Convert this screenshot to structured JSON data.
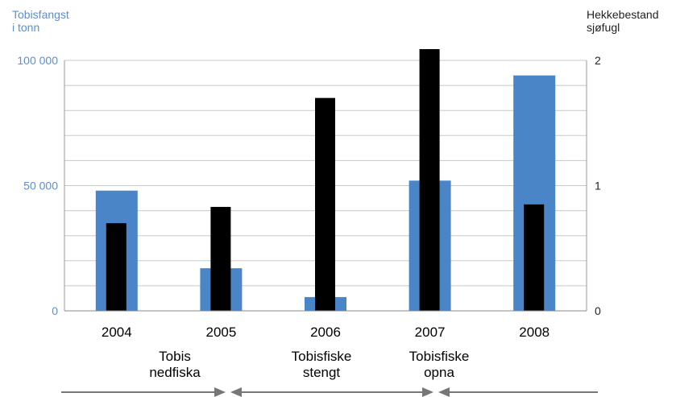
{
  "chart_data": {
    "type": "bar",
    "categories": [
      "2004",
      "2005",
      "2006",
      "2007",
      "2008"
    ],
    "y_left": {
      "title_lines": [
        "Tobisfangst",
        "i tonn"
      ],
      "range": [
        0,
        100000
      ],
      "ticks": [
        {
          "value": 0,
          "label": "0"
        },
        {
          "value": 50000,
          "label": "50 000"
        },
        {
          "value": 100000,
          "label": "100 000"
        }
      ],
      "color": "#5b8fd0"
    },
    "y_right": {
      "title_lines": [
        "Hekkebestand",
        "sjøfugl"
      ],
      "range": [
        0,
        2
      ],
      "ticks": [
        {
          "value": 0,
          "label": "0"
        },
        {
          "value": 1,
          "label": "1"
        },
        {
          "value": 2,
          "label": "2"
        }
      ],
      "color": "#222222"
    },
    "series": [
      {
        "axis": "left",
        "color": "#4a85c8",
        "values": [
          48000,
          17000,
          5500,
          52000,
          94000
        ]
      },
      {
        "axis": "right",
        "color": "#000000",
        "values": [
          0.7,
          0.83,
          1.7,
          2.09,
          0.85
        ]
      }
    ],
    "grid": true,
    "grid_step_left": 10000,
    "annotations": [
      {
        "lines": [
          "Tobis",
          "nedfiska"
        ]
      },
      {
        "lines": [
          "Tobisfiske",
          "stengt"
        ]
      },
      {
        "lines": [
          "Tobisfiske",
          "opna"
        ]
      }
    ],
    "arrow_color": "#777777"
  }
}
